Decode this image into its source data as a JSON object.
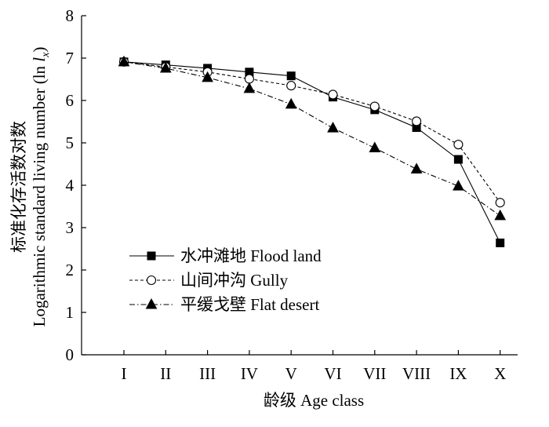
{
  "chart_data": {
    "type": "line",
    "xlabel": "龄级 Age class",
    "ylabel_cn": "标准化存活数对数",
    "ylabel_en_prefix": "Logarithmic standard living number (ln ",
    "ylabel_en_symbol": "l",
    "ylabel_en_subscript": "x",
    "ylabel_en_suffix": ")",
    "categories": [
      "I",
      "II",
      "III",
      "IV",
      "V",
      "VI",
      "VII",
      "VIII",
      "IX",
      "X"
    ],
    "ylim": [
      0,
      8
    ],
    "yticks": [
      0,
      1,
      2,
      3,
      4,
      5,
      6,
      7,
      8
    ],
    "grid": false,
    "legend_position": "bottom-left",
    "series": [
      {
        "name": "水冲滩地 Flood land",
        "marker": "filled-square",
        "line_style": "solid",
        "color": "#000000",
        "values": [
          6.91,
          6.84,
          6.76,
          6.67,
          6.58,
          6.08,
          5.78,
          5.36,
          4.61,
          2.64
        ]
      },
      {
        "name": "山间冲沟 Gully",
        "marker": "open-circle",
        "line_style": "dashed",
        "color": "#000000",
        "values": [
          6.91,
          6.79,
          6.67,
          6.51,
          6.35,
          6.14,
          5.86,
          5.51,
          4.96,
          3.59
        ]
      },
      {
        "name": "平缓戈壁 Flat desert",
        "marker": "filled-triangle",
        "line_style": "dash-dot",
        "color": "#000000",
        "values": [
          6.91,
          6.76,
          6.54,
          6.28,
          5.91,
          5.35,
          4.88,
          4.38,
          3.98,
          3.28
        ]
      }
    ]
  }
}
